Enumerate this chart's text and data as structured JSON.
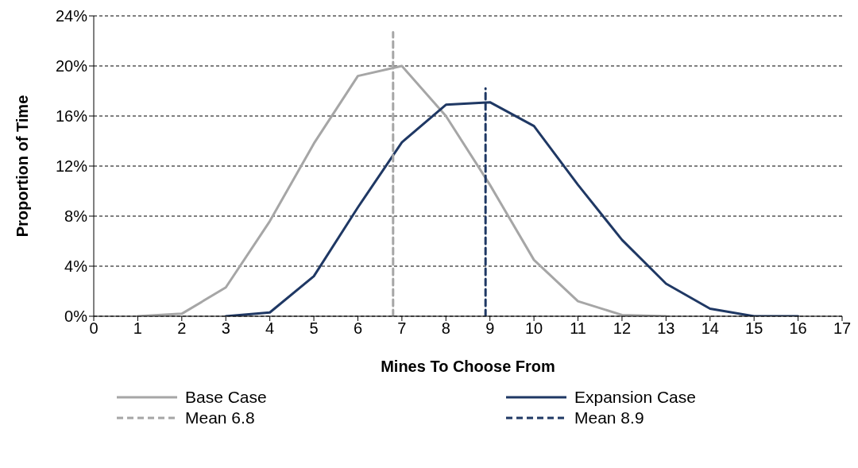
{
  "chart_data": {
    "type": "line",
    "xlabel": "Mines To Choose From",
    "ylabel": "Proportion of Time",
    "xlim": [
      0,
      17
    ],
    "xticks": [
      0,
      1,
      2,
      3,
      4,
      5,
      6,
      7,
      8,
      9,
      10,
      11,
      12,
      13,
      14,
      15,
      16,
      17
    ],
    "ylim": [
      0,
      24
    ],
    "yticks": [
      {
        "value": 0,
        "label": "0%"
      },
      {
        "value": 4,
        "label": "4%"
      },
      {
        "value": 8,
        "label": "8%"
      },
      {
        "value": 12,
        "label": "12%"
      },
      {
        "value": 16,
        "label": "16%"
      },
      {
        "value": 20,
        "label": "20%"
      },
      {
        "value": 24,
        "label": "24%"
      }
    ],
    "grid": "y",
    "legend": "bottom",
    "marker": "none",
    "series": [
      {
        "name": "Base Case",
        "color": "#a6a6a6",
        "line_style": "solid",
        "x": [
          1,
          2,
          3,
          4,
          5,
          6,
          7,
          8,
          9,
          10,
          11,
          12,
          13
        ],
        "values": [
          0,
          0.2,
          2.3,
          7.6,
          13.8,
          19.2,
          20.0,
          16.0,
          10.5,
          4.5,
          1.2,
          0.1,
          0
        ]
      },
      {
        "name": "Expansion Case",
        "color": "#1f3864",
        "line_style": "solid",
        "x": [
          3,
          4,
          5,
          6,
          7,
          8,
          9,
          10,
          11,
          12,
          13,
          14,
          15,
          16
        ],
        "values": [
          0,
          0.3,
          3.2,
          8.7,
          13.9,
          16.9,
          17.1,
          15.2,
          10.5,
          6.1,
          2.6,
          0.6,
          0,
          0
        ]
      },
      {
        "name": "Mean 6.8",
        "color": "#a6a6a6",
        "line_style": "dashed",
        "x": [
          6.8,
          6.8
        ],
        "values": [
          0,
          22.7
        ]
      },
      {
        "name": "Mean 8.9",
        "color": "#1f3864",
        "line_style": "dashed",
        "x": [
          8.9,
          8.9
        ],
        "values": [
          0,
          18.2
        ]
      }
    ]
  }
}
